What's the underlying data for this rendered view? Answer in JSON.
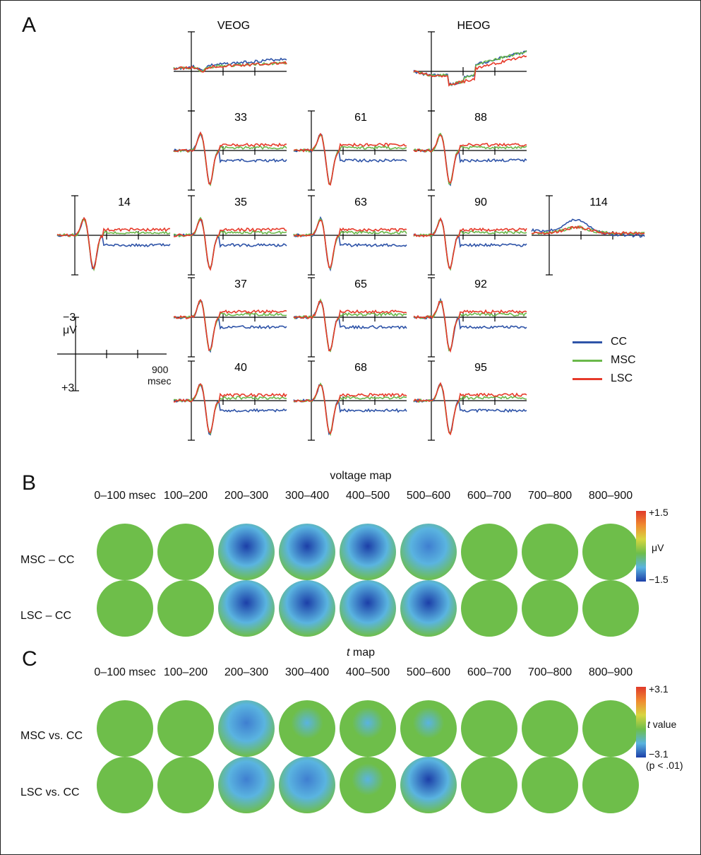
{
  "panels": {
    "a": "A",
    "b": "B",
    "c": "C"
  },
  "panel_a": {
    "electrodes": [
      "VEOG",
      "HEOG",
      "33",
      "61",
      "88",
      "14",
      "35",
      "63",
      "90",
      "114",
      "37",
      "65",
      "92",
      "40",
      "68",
      "95"
    ],
    "scale": {
      "top": "−3",
      "unit": "μV",
      "bottom": "+3",
      "time": "900",
      "time_unit": "msec"
    },
    "legend": [
      {
        "label": "CC",
        "color": "#2f54a8"
      },
      {
        "label": "MSC",
        "color": "#6ab84a"
      },
      {
        "label": "LSC",
        "color": "#e63a2a"
      }
    ]
  },
  "panel_b": {
    "title": "voltage map",
    "time_windows": [
      "0–100 msec",
      "100–200",
      "200–300",
      "300–400",
      "400–500",
      "500–600",
      "600–700",
      "700–800",
      "800–900"
    ],
    "rows": [
      "MSC – CC",
      "LSC – CC"
    ],
    "colorbar": {
      "top": "+1.5",
      "mid": "μV",
      "bottom": "−1.5"
    },
    "intensity": [
      [
        0.15,
        0.3,
        0.9,
        0.9,
        0.9,
        0.7,
        0.3,
        0.15,
        0.2
      ],
      [
        0.35,
        0.25,
        0.95,
        1.0,
        0.95,
        0.95,
        0.35,
        0.3,
        0.35
      ]
    ]
  },
  "panel_c": {
    "title_italic": "t",
    "title_rest": " map",
    "time_windows": [
      "0–100 msec",
      "100–200",
      "200–300",
      "300–400",
      "400–500",
      "500–600",
      "600–700",
      "700–800",
      "800–900"
    ],
    "rows": [
      "MSC vs. CC",
      "LSC vs. CC"
    ],
    "colorbar": {
      "top": "+3.1",
      "mid_italic": "t",
      "mid_rest": " value",
      "bottom": "−3.1",
      "p": "(p < .01)"
    },
    "intensity": [
      [
        0.15,
        0.25,
        0.75,
        0.5,
        0.45,
        0.45,
        0.25,
        0.15,
        0.2
      ],
      [
        0.3,
        0.3,
        0.7,
        0.8,
        0.5,
        0.9,
        0.35,
        0.25,
        0.35
      ]
    ]
  },
  "colors": {
    "green": "#6ebe4a",
    "light_blue": "#5ab4e0",
    "dark_blue": "#1c3fa8",
    "yellow": "#d8d640",
    "red": "#e03a2a"
  }
}
